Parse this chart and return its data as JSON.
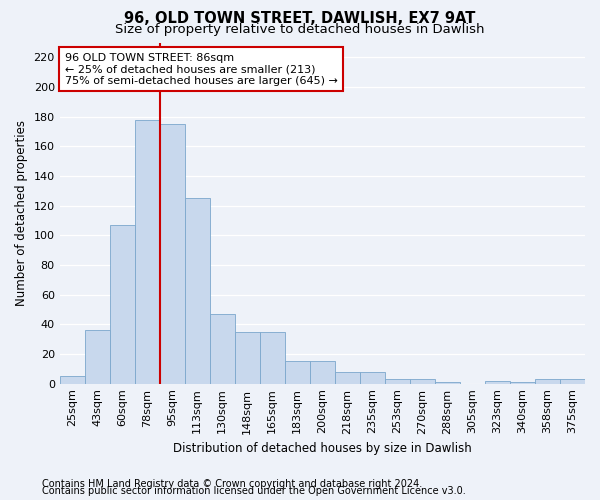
{
  "title1": "96, OLD TOWN STREET, DAWLISH, EX7 9AT",
  "title2": "Size of property relative to detached houses in Dawlish",
  "xlabel": "Distribution of detached houses by size in Dawlish",
  "ylabel": "Number of detached properties",
  "categories": [
    "25sqm",
    "43sqm",
    "60sqm",
    "78sqm",
    "95sqm",
    "113sqm",
    "130sqm",
    "148sqm",
    "165sqm",
    "183sqm",
    "200sqm",
    "218sqm",
    "235sqm",
    "253sqm",
    "270sqm",
    "288sqm",
    "305sqm",
    "323sqm",
    "340sqm",
    "358sqm",
    "375sqm"
  ],
  "values": [
    5,
    36,
    107,
    178,
    175,
    125,
    47,
    35,
    35,
    15,
    15,
    8,
    8,
    3,
    3,
    1,
    0,
    2,
    1,
    3,
    3
  ],
  "bar_color": "#c8d8ed",
  "bar_edge_color": "#7ba7cc",
  "vline_x": 3.5,
  "vline_color": "#cc0000",
  "annotation_line1": "96 OLD TOWN STREET: 86sqm",
  "annotation_line2": "← 25% of detached houses are smaller (213)",
  "annotation_line3": "75% of semi-detached houses are larger (645) →",
  "annotation_box_color": "#ffffff",
  "annotation_box_edge_color": "#cc0000",
  "ylim": [
    0,
    230
  ],
  "yticks": [
    0,
    20,
    40,
    60,
    80,
    100,
    120,
    140,
    160,
    180,
    200,
    220
  ],
  "footer1": "Contains HM Land Registry data © Crown copyright and database right 2024.",
  "footer2": "Contains public sector information licensed under the Open Government Licence v3.0.",
  "bg_color": "#eef2f9",
  "grid_color": "#ffffff",
  "title_fontsize": 10.5,
  "subtitle_fontsize": 9.5,
  "axis_label_fontsize": 8.5,
  "tick_fontsize": 8,
  "annotation_fontsize": 8,
  "footer_fontsize": 7
}
